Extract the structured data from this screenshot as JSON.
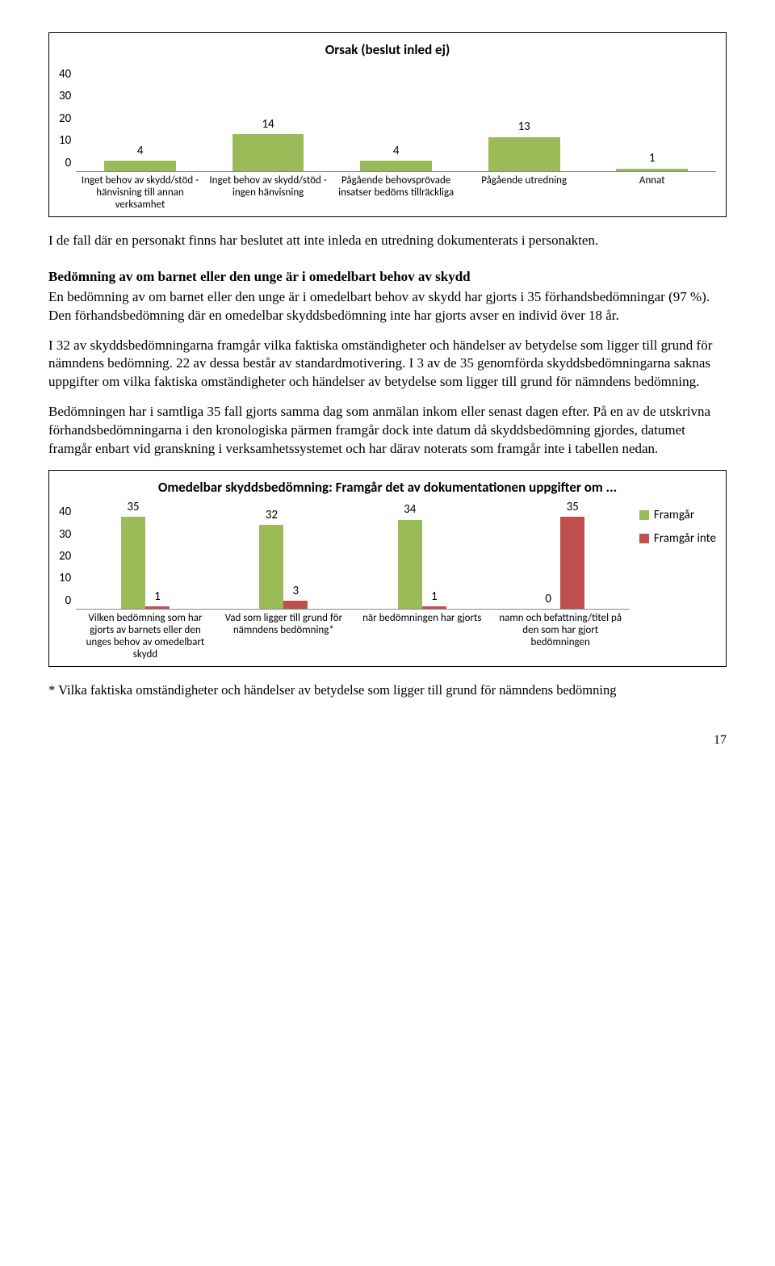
{
  "chart1": {
    "title": "Orsak (beslut inled ej)",
    "ylim": [
      0,
      40
    ],
    "yticks": [
      40,
      30,
      20,
      10,
      0
    ],
    "bar_color": "#9bbb59",
    "categories": [
      "Inget behov av skydd/stöd - hänvisning till annan verksamhet",
      "Inget behov av skydd/stöd - ingen hänvisning",
      "Pågående behovsprövade insatser bedöms tillräckliga",
      "Pågående utredning",
      "Annat"
    ],
    "values": [
      4,
      14,
      4,
      13,
      1
    ]
  },
  "para1": "I de fall där en personakt finns har beslutet att inte inleda en utredning dokumenterats i personakten.",
  "section_heading": "Bedömning av om barnet eller den unge är i omedelbart behov av skydd",
  "para2": "En bedömning av om barnet eller den unge är i omedelbart behov av skydd har gjorts i 35 förhandsbedömningar (97 %). Den förhandsbedömning där en omedelbar skyddsbedömning inte har gjorts avser en individ över 18 år.",
  "para3": "I 32 av skyddsbedömningarna framgår vilka faktiska omständigheter och händelser av betydelse som ligger till grund för nämndens bedömning. 22 av dessa består av standardmotivering. I 3 av de 35 genomförda skyddsbedömningarna saknas uppgifter om vilka faktiska omständigheter och händelser av betydelse som ligger till grund för nämndens bedömning.",
  "para4": "Bedömningen har i samtliga 35 fall gjorts samma dag som anmälan inkom eller senast dagen efter. På en av de utskrivna förhandsbedömningarna i den kronologiska pärmen framgår dock inte datum då skyddsbedömning gjordes, datumet framgår enbart vid granskning i verksamhetssystemet och har därav noterats som framgår inte i tabellen nedan.",
  "chart2": {
    "title": "Omedelbar skyddsbedömning: Framgår det av dokumentationen uppgifter om ...",
    "ylim": [
      0,
      40
    ],
    "yticks": [
      40,
      30,
      20,
      10,
      0
    ],
    "series": [
      {
        "label": "Framgår",
        "color": "#9bbb59"
      },
      {
        "label": "Framgår inte",
        "color": "#c0504d"
      }
    ],
    "categories": [
      "Vilken bedömning som har gjorts av barnets eller den unges behov av omedelbart skydd",
      "Vad som ligger till grund för nämndens bedömning*",
      "när bedömningen har gjorts",
      "namn och befattning/titel på den som har gjort bedömningen"
    ],
    "values_a": [
      35,
      32,
      34,
      0
    ],
    "values_b": [
      1,
      3,
      1,
      35
    ]
  },
  "footnote": "* Vilka faktiska omständigheter och händelser av betydelse som ligger till grund för nämndens bedömning",
  "page_number": "17"
}
